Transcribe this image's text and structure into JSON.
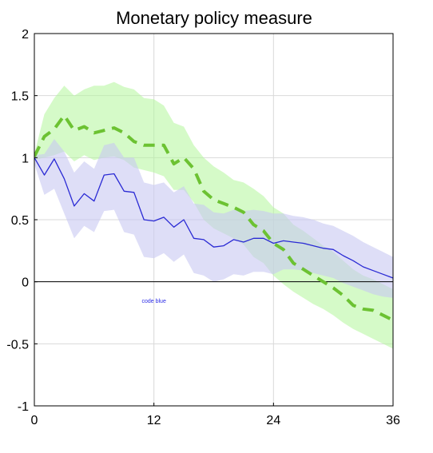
{
  "chart_data": {
    "type": "line",
    "title": "Monetary policy measure",
    "xlabel": "",
    "ylabel": "",
    "xlim": [
      0,
      36
    ],
    "ylim": [
      -1,
      2
    ],
    "xticks": [
      0,
      12,
      24,
      36
    ],
    "yticks": [
      -1,
      -0.5,
      0,
      0.5,
      1,
      1.5,
      2
    ],
    "grid": true,
    "zero_line": true,
    "annotation": {
      "text": "code blue",
      "x": 12,
      "y": -0.17,
      "color": "#2b2be6"
    },
    "colors": {
      "blue_line": "#2a2ad4",
      "blue_band": "#c8c8f2",
      "green_line": "#6cc232",
      "green_band": "#b2f59a"
    },
    "series": [
      {
        "style": "solid",
        "color": "#2a2ad4",
        "x": [
          0,
          1,
          2,
          3,
          4,
          5,
          6,
          7,
          8,
          9,
          10,
          11,
          12,
          13,
          14,
          15,
          16,
          17,
          18,
          19,
          20,
          21,
          22,
          23,
          24,
          25,
          26,
          27,
          28,
          29,
          30,
          31,
          32,
          33,
          34,
          35,
          36
        ],
        "values": [
          1.0,
          0.86,
          0.99,
          0.83,
          0.61,
          0.71,
          0.65,
          0.86,
          0.87,
          0.73,
          0.72,
          0.5,
          0.49,
          0.52,
          0.44,
          0.5,
          0.35,
          0.34,
          0.28,
          0.29,
          0.34,
          0.32,
          0.35,
          0.35,
          0.31,
          0.33,
          0.32,
          0.31,
          0.29,
          0.27,
          0.26,
          0.21,
          0.17,
          0.12,
          0.09,
          0.06,
          0.03
        ],
        "band_lower": [
          0.95,
          0.7,
          0.75,
          0.55,
          0.35,
          0.45,
          0.4,
          0.57,
          0.58,
          0.4,
          0.38,
          0.2,
          0.19,
          0.23,
          0.16,
          0.22,
          0.07,
          0.05,
          0.0,
          0.02,
          0.06,
          0.05,
          0.08,
          0.08,
          0.06,
          0.1,
          0.1,
          0.09,
          0.07,
          0.05,
          0.03,
          -0.01,
          -0.04,
          -0.07,
          -0.1,
          -0.12,
          -0.13
        ],
        "band_upper": [
          1.02,
          1.03,
          1.15,
          1.05,
          0.88,
          0.97,
          0.91,
          1.1,
          1.12,
          1.0,
          1.0,
          0.8,
          0.78,
          0.8,
          0.72,
          0.77,
          0.63,
          0.62,
          0.56,
          0.55,
          0.58,
          0.57,
          0.58,
          0.57,
          0.55,
          0.55,
          0.53,
          0.52,
          0.5,
          0.47,
          0.45,
          0.41,
          0.37,
          0.32,
          0.28,
          0.24,
          0.2
        ]
      },
      {
        "style": "dashed",
        "color": "#6cc232",
        "x": [
          0,
          1,
          2,
          3,
          4,
          5,
          6,
          7,
          8,
          9,
          10,
          11,
          12,
          13,
          14,
          15,
          16,
          17,
          18,
          19,
          20,
          21,
          22,
          23,
          24,
          25,
          26,
          27,
          28,
          29,
          30,
          31,
          32,
          33,
          34,
          35,
          36
        ],
        "values": [
          1.01,
          1.17,
          1.23,
          1.34,
          1.22,
          1.25,
          1.2,
          1.22,
          1.24,
          1.2,
          1.13,
          1.1,
          1.1,
          1.1,
          0.95,
          1.0,
          0.91,
          0.73,
          0.66,
          0.63,
          0.6,
          0.56,
          0.46,
          0.41,
          0.31,
          0.26,
          0.15,
          0.1,
          0.05,
          0.0,
          -0.05,
          -0.11,
          -0.19,
          -0.22,
          -0.23,
          -0.27,
          -0.31
        ],
        "band_lower": [
          0.98,
          1.0,
          1.02,
          1.05,
          0.97,
          1.02,
          0.98,
          1.0,
          1.01,
          0.98,
          0.92,
          0.9,
          0.88,
          0.85,
          0.74,
          0.74,
          0.64,
          0.5,
          0.43,
          0.39,
          0.35,
          0.3,
          0.2,
          0.15,
          0.05,
          -0.02,
          -0.08,
          -0.13,
          -0.18,
          -0.22,
          -0.27,
          -0.33,
          -0.38,
          -0.42,
          -0.46,
          -0.5,
          -0.54
        ],
        "band_upper": [
          1.03,
          1.35,
          1.48,
          1.58,
          1.5,
          1.55,
          1.58,
          1.58,
          1.61,
          1.57,
          1.55,
          1.48,
          1.47,
          1.42,
          1.28,
          1.25,
          1.1,
          1.0,
          0.93,
          0.88,
          0.82,
          0.8,
          0.75,
          0.69,
          0.6,
          0.55,
          0.46,
          0.41,
          0.35,
          0.29,
          0.24,
          0.17,
          0.1,
          0.05,
          0.02,
          -0.02,
          -0.06
        ]
      }
    ]
  }
}
